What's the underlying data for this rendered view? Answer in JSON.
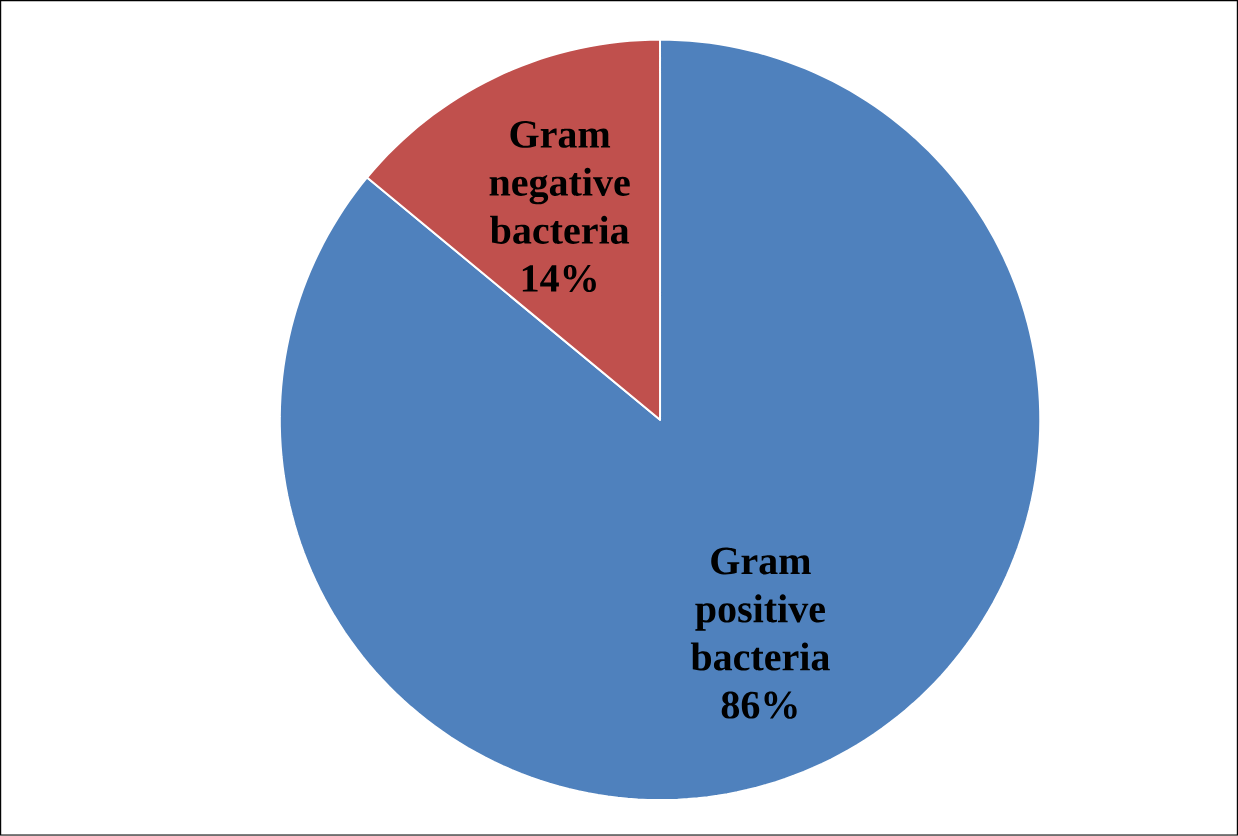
{
  "chart_data": {
    "type": "pie",
    "categories": [
      "Gram positive bacteria",
      "Gram negative bacteria"
    ],
    "values": [
      86,
      14
    ],
    "colors": [
      "#4f81bd",
      "#c0504d"
    ],
    "value_labels": [
      "86%",
      "14%"
    ]
  }
}
